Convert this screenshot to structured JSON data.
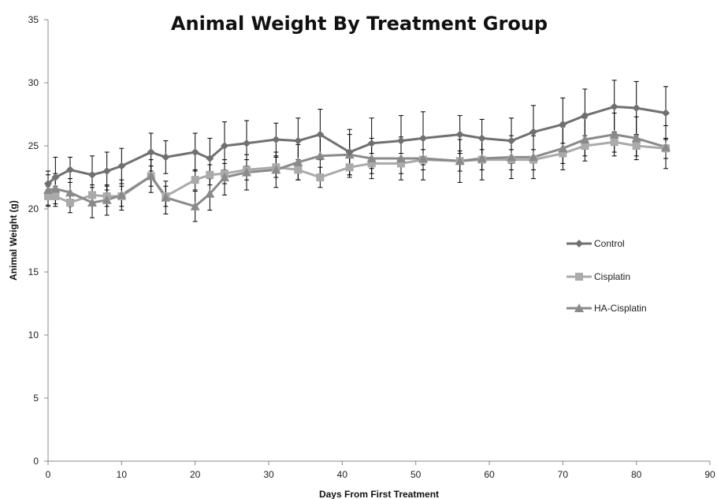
{
  "chart_data": {
    "type": "line",
    "title": "Animal Weight By Treatment Group",
    "xlabel": "Days From First Treatment",
    "ylabel": "Animal Weight (g)",
    "xlim": [
      0,
      90
    ],
    "ylim": [
      0,
      35
    ],
    "x_ticks": [
      0,
      10,
      20,
      30,
      40,
      50,
      60,
      70,
      80,
      90
    ],
    "y_ticks": [
      0,
      5,
      10,
      15,
      20,
      25,
      30,
      35
    ],
    "grid": false,
    "legend_position": "right",
    "series": [
      {
        "name": "Control",
        "color": "#707070",
        "marker": "diamond",
        "x": [
          0,
          1,
          3,
          6,
          8,
          10,
          14,
          16,
          20,
          22,
          24,
          27,
          31,
          34,
          37,
          41,
          44,
          48,
          51,
          56,
          59,
          63,
          66,
          70,
          73,
          77,
          80,
          84
        ],
        "y": [
          22.0,
          22.5,
          23.1,
          22.7,
          23.0,
          23.4,
          24.5,
          24.1,
          24.5,
          24.0,
          25.0,
          25.2,
          25.5,
          25.4,
          25.9,
          24.5,
          25.2,
          25.4,
          25.6,
          25.9,
          25.6,
          25.4,
          26.1,
          26.7,
          27.4,
          28.1,
          28.0,
          27.6
        ],
        "err": [
          1.0,
          1.6,
          1.0,
          1.5,
          1.5,
          1.4,
          1.5,
          1.3,
          1.5,
          1.6,
          1.9,
          1.8,
          1.3,
          1.8,
          2.0,
          1.8,
          2.0,
          2.0,
          2.1,
          1.5,
          1.5,
          1.8,
          2.1,
          2.1,
          2.1,
          2.1,
          2.1,
          2.1
        ]
      },
      {
        "name": "Cisplatin",
        "color": "#aaaaaa",
        "marker": "square",
        "x": [
          0,
          1,
          3,
          6,
          8,
          10,
          14,
          16,
          20,
          22,
          24,
          27,
          31,
          34,
          37,
          41,
          44,
          48,
          51,
          56,
          59,
          63,
          66,
          70,
          73,
          77,
          80,
          84
        ],
        "y": [
          21.0,
          21.0,
          20.5,
          21.1,
          21.0,
          21.0,
          22.6,
          21.0,
          22.3,
          22.7,
          22.8,
          23.1,
          23.3,
          23.1,
          22.5,
          23.3,
          23.6,
          23.6,
          23.9,
          23.8,
          23.9,
          23.9,
          23.9,
          24.4,
          25.0,
          25.3,
          25.0,
          24.8
        ],
        "err": [
          0.8,
          0.8,
          0.8,
          0.8,
          0.8,
          0.8,
          0.8,
          0.8,
          0.8,
          0.8,
          0.8,
          0.8,
          0.8,
          0.8,
          0.8,
          0.8,
          0.8,
          0.8,
          0.8,
          0.8,
          0.8,
          0.8,
          0.8,
          0.8,
          0.8,
          0.8,
          0.8,
          0.8
        ]
      },
      {
        "name": "HA-Cisplatin",
        "color": "#8a8a8a",
        "marker": "triangle",
        "x": [
          0,
          1,
          3,
          6,
          8,
          10,
          14,
          16,
          20,
          22,
          24,
          27,
          31,
          34,
          37,
          41,
          44,
          48,
          51,
          56,
          59,
          63,
          66,
          70,
          73,
          77,
          80,
          84
        ],
        "y": [
          21.5,
          21.6,
          21.3,
          20.5,
          20.7,
          21.1,
          22.6,
          20.9,
          20.2,
          21.2,
          22.5,
          22.9,
          23.1,
          23.7,
          24.2,
          24.3,
          24.0,
          24.0,
          24.0,
          23.8,
          24.0,
          24.1,
          24.1,
          24.8,
          25.5,
          25.9,
          25.6,
          24.9
        ],
        "err": [
          1.2,
          1.2,
          1.1,
          1.2,
          1.2,
          1.2,
          1.3,
          1.3,
          1.2,
          1.3,
          1.4,
          1.4,
          1.4,
          1.4,
          1.6,
          1.6,
          1.6,
          1.7,
          1.7,
          1.7,
          1.7,
          1.7,
          1.7,
          1.7,
          1.7,
          1.7,
          1.7,
          1.7
        ]
      }
    ]
  }
}
